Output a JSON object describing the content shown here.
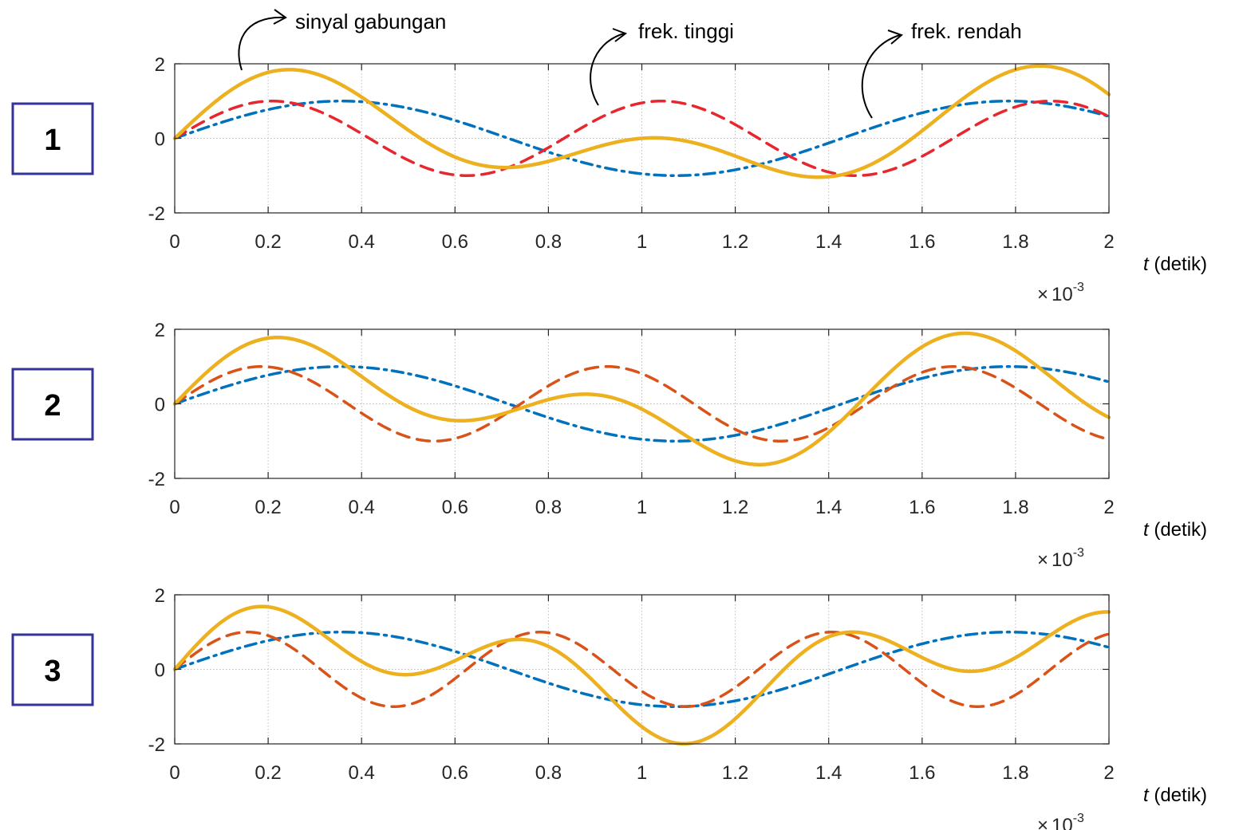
{
  "annotations": {
    "combined": "sinyal gabungan",
    "high": "frek. tinggi",
    "low": "frek. rendah"
  },
  "colors": {
    "low": "#0072BD",
    "high_panel1": "#E8262D",
    "high_other": "#D95319",
    "sum": "#EDB120",
    "box_border": "#333399"
  },
  "chart_data": [
    {
      "type": "line",
      "panel_label": "1",
      "xlabel_var": "t",
      "xlabel_unit": " (detik)",
      "x_multiplier_base": "10",
      "x_multiplier_exp": "-3",
      "xlim": [
        0,
        0.002
      ],
      "ylim": [
        -2,
        2
      ],
      "x_ticks": [
        "0",
        "0.2",
        "0.4",
        "0.6",
        "0.8",
        "1",
        "1.2",
        "1.4",
        "1.6",
        "1.8",
        "2"
      ],
      "y_ticks": [
        "-2",
        "0",
        "2"
      ],
      "grid": true,
      "series": [
        {
          "key": "low",
          "freq_hz": 700,
          "amplitude": 1,
          "style": "dashdot",
          "color": "#0072BD"
        },
        {
          "key": "high",
          "freq_hz": 1200,
          "amplitude": 1,
          "style": "dashed",
          "color": "#E8262D"
        },
        {
          "key": "sum",
          "style": "solid",
          "color": "#EDB120",
          "sum_of": [
            "low",
            "high"
          ]
        }
      ]
    },
    {
      "type": "line",
      "panel_label": "2",
      "xlabel_var": "t",
      "xlabel_unit": " (detik)",
      "x_multiplier_base": "10",
      "x_multiplier_exp": "-3",
      "xlim": [
        0,
        0.002
      ],
      "ylim": [
        -2,
        2
      ],
      "x_ticks": [
        "0",
        "0.2",
        "0.4",
        "0.6",
        "0.8",
        "1",
        "1.2",
        "1.4",
        "1.6",
        "1.8",
        "2"
      ],
      "y_ticks": [
        "-2",
        "0",
        "2"
      ],
      "grid": true,
      "series": [
        {
          "key": "low",
          "freq_hz": 700,
          "amplitude": 1,
          "style": "dashdot",
          "color": "#0072BD"
        },
        {
          "key": "high",
          "freq_hz": 1350,
          "amplitude": 1,
          "style": "dashed",
          "color": "#D95319"
        },
        {
          "key": "sum",
          "style": "solid",
          "color": "#EDB120",
          "sum_of": [
            "low",
            "high"
          ]
        }
      ]
    },
    {
      "type": "line",
      "panel_label": "3",
      "xlabel_var": "t",
      "xlabel_unit": " (detik)",
      "x_multiplier_base": "10",
      "x_multiplier_exp": "-3",
      "xlim": [
        0,
        0.002
      ],
      "ylim": [
        -2,
        2
      ],
      "x_ticks": [
        "0",
        "0.2",
        "0.4",
        "0.6",
        "0.8",
        "1",
        "1.2",
        "1.4",
        "1.6",
        "1.8",
        "2"
      ],
      "y_ticks": [
        "-2",
        "0",
        "2"
      ],
      "grid": true,
      "series": [
        {
          "key": "low",
          "freq_hz": 700,
          "amplitude": 1,
          "style": "dashdot",
          "color": "#0072BD"
        },
        {
          "key": "high",
          "freq_hz": 1600,
          "amplitude": 1,
          "style": "dashed",
          "color": "#D95319"
        },
        {
          "key": "sum",
          "style": "solid",
          "color": "#EDB120",
          "sum_of": [
            "low",
            "high"
          ]
        }
      ]
    }
  ]
}
